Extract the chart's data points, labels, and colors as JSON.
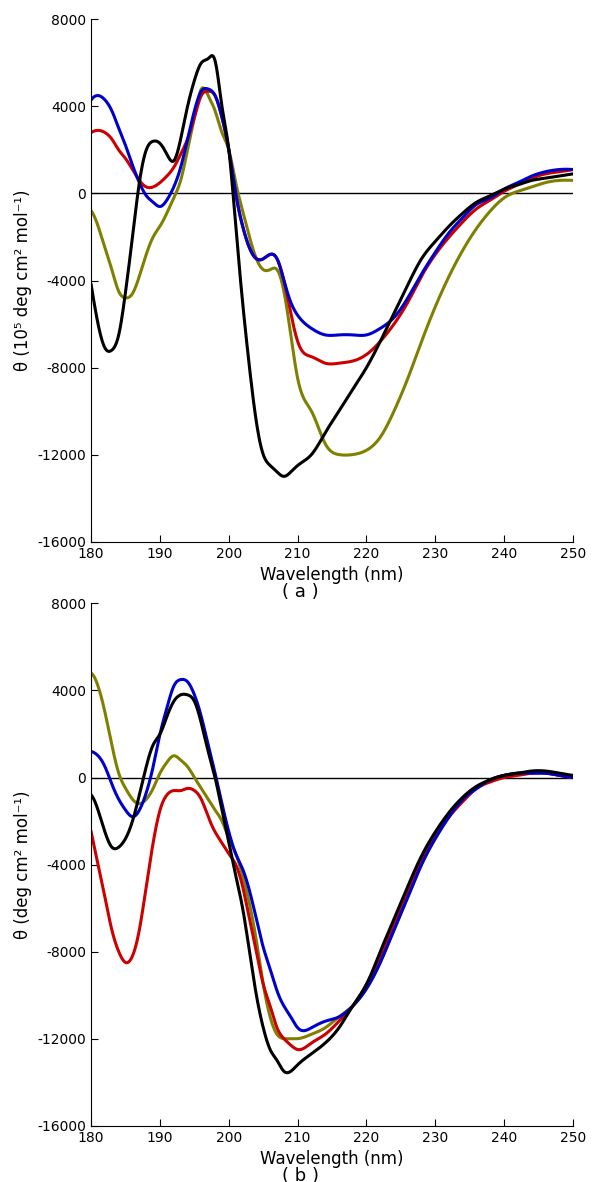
{
  "title_a": "( a )",
  "title_b": "( b )",
  "xlabel": "Wavelength (nm)",
  "ylabel_a": "θ (10⁵ deg cm² mol⁻¹)",
  "ylabel_b": "θ (deg cm² mol⁻¹)",
  "xlim": [
    180,
    250
  ],
  "ylim": [
    -16000,
    8000
  ],
  "xticks": [
    180,
    190,
    200,
    210,
    220,
    230,
    240,
    250
  ],
  "yticks": [
    -16000,
    -12000,
    -8000,
    -4000,
    0,
    4000,
    8000
  ],
  "colors": {
    "black": "#000000",
    "red": "#cc0000",
    "blue": "#0000cc",
    "olive": "#808000"
  },
  "linewidth": 2.2,
  "figsize": [
    6.0,
    11.82
  ],
  "dpi": 100,
  "panel_a": {
    "black_x": [
      180,
      181,
      182,
      183,
      184,
      185,
      186,
      187,
      188,
      189,
      190,
      191,
      192,
      193,
      194,
      195,
      196,
      197,
      198,
      199,
      200,
      201,
      202,
      203,
      204,
      205,
      206,
      207,
      208,
      209,
      210,
      212,
      214,
      216,
      218,
      220,
      222,
      224,
      226,
      228,
      230,
      232,
      234,
      236,
      238,
      240,
      242,
      244,
      246,
      248,
      250
    ],
    "black_y": [
      -4200,
      -6000,
      -7100,
      -7200,
      -6500,
      -4500,
      -2000,
      500,
      2000,
      2400,
      2300,
      1800,
      1500,
      2500,
      4000,
      5200,
      6000,
      6200,
      6100,
      4000,
      2000,
      -1500,
      -5000,
      -8000,
      -10500,
      -12000,
      -12500,
      -12800,
      -13000,
      -12800,
      -12500,
      -12000,
      -11000,
      -10000,
      -9000,
      -8000,
      -6800,
      -5500,
      -4200,
      -3000,
      -2200,
      -1500,
      -900,
      -400,
      -100,
      200,
      400,
      600,
      700,
      800,
      900
    ],
    "red_x": [
      180,
      181,
      182,
      183,
      184,
      185,
      186,
      187,
      188,
      189,
      190,
      191,
      192,
      193,
      194,
      195,
      196,
      197,
      198,
      199,
      200,
      201,
      202,
      203,
      204,
      205,
      206,
      207,
      208,
      209,
      210,
      212,
      214,
      216,
      218,
      220,
      222,
      224,
      226,
      228,
      230,
      232,
      234,
      236,
      238,
      240,
      242,
      244,
      246,
      248,
      250
    ],
    "red_y": [
      2800,
      2900,
      2800,
      2500,
      2000,
      1600,
      1100,
      600,
      300,
      300,
      500,
      800,
      1200,
      1800,
      2500,
      3500,
      4500,
      4700,
      4500,
      3500,
      2000,
      0,
      -1500,
      -2500,
      -3000,
      -3000,
      -2800,
      -3000,
      -4000,
      -5500,
      -6800,
      -7500,
      -7800,
      -7800,
      -7700,
      -7400,
      -6800,
      -6000,
      -5000,
      -3800,
      -2800,
      -2000,
      -1300,
      -700,
      -300,
      100,
      400,
      700,
      900,
      1000,
      1100
    ],
    "blue_x": [
      180,
      181,
      182,
      183,
      184,
      185,
      186,
      187,
      188,
      189,
      190,
      191,
      192,
      193,
      194,
      195,
      196,
      197,
      198,
      199,
      200,
      201,
      202,
      203,
      204,
      205,
      206,
      207,
      208,
      209,
      210,
      212,
      214,
      216,
      218,
      220,
      222,
      224,
      226,
      228,
      230,
      232,
      234,
      236,
      238,
      240,
      242,
      244,
      246,
      248,
      250
    ],
    "blue_y": [
      4300,
      4500,
      4300,
      3800,
      3000,
      2200,
      1300,
      500,
      -100,
      -400,
      -600,
      -300,
      300,
      1200,
      2500,
      3800,
      4700,
      4800,
      4500,
      3500,
      2000,
      0,
      -1500,
      -2500,
      -3000,
      -3000,
      -2800,
      -3000,
      -4000,
      -5000,
      -5600,
      -6200,
      -6500,
      -6500,
      -6500,
      -6500,
      -6200,
      -5700,
      -4800,
      -3700,
      -2700,
      -1800,
      -1100,
      -500,
      -200,
      200,
      500,
      800,
      1000,
      1100,
      1100
    ],
    "olive_x": [
      180,
      181,
      182,
      183,
      184,
      185,
      186,
      187,
      188,
      189,
      190,
      191,
      192,
      193,
      194,
      195,
      196,
      197,
      198,
      199,
      200,
      201,
      202,
      203,
      204,
      205,
      206,
      207,
      208,
      209,
      210,
      212,
      214,
      216,
      218,
      220,
      222,
      224,
      226,
      228,
      230,
      232,
      234,
      236,
      238,
      240,
      242,
      244,
      246,
      248,
      250
    ],
    "olive_y": [
      -800,
      -1500,
      -2500,
      -3500,
      -4500,
      -4800,
      -4600,
      -3800,
      -2800,
      -2000,
      -1500,
      -900,
      -200,
      600,
      2000,
      3500,
      4800,
      4500,
      3800,
      2800,
      2000,
      500,
      -800,
      -2000,
      -3000,
      -3500,
      -3500,
      -3500,
      -4500,
      -6500,
      -8500,
      -10000,
      -11500,
      -12000,
      -12000,
      -11800,
      -11200,
      -10000,
      -8500,
      -6800,
      -5200,
      -3800,
      -2600,
      -1600,
      -800,
      -200,
      100,
      300,
      500,
      600,
      600
    ]
  },
  "panel_b": {
    "black_x": [
      180,
      181,
      182,
      183,
      184,
      185,
      186,
      187,
      188,
      189,
      190,
      191,
      192,
      193,
      194,
      195,
      196,
      197,
      198,
      199,
      200,
      201,
      202,
      203,
      204,
      205,
      206,
      207,
      208,
      209,
      210,
      212,
      214,
      216,
      218,
      220,
      222,
      224,
      226,
      228,
      230,
      232,
      234,
      236,
      238,
      240,
      242,
      244,
      246,
      248,
      250
    ],
    "black_y": [
      -800,
      -1500,
      -2500,
      -3200,
      -3200,
      -2800,
      -2000,
      -800,
      500,
      1500,
      2000,
      2800,
      3500,
      3800,
      3800,
      3500,
      2500,
      1200,
      0,
      -1500,
      -3000,
      -4500,
      -6000,
      -8000,
      -10000,
      -11500,
      -12500,
      -13000,
      -13500,
      -13500,
      -13200,
      -12700,
      -12200,
      -11500,
      -10500,
      -9500,
      -8000,
      -6500,
      -5000,
      -3600,
      -2500,
      -1600,
      -900,
      -400,
      -100,
      100,
      200,
      300,
      300,
      200,
      100
    ],
    "red_x": [
      180,
      181,
      182,
      183,
      184,
      185,
      186,
      187,
      188,
      189,
      190,
      191,
      192,
      193,
      194,
      195,
      196,
      197,
      198,
      199,
      200,
      201,
      202,
      203,
      204,
      205,
      206,
      207,
      208,
      209,
      210,
      212,
      214,
      216,
      218,
      220,
      222,
      224,
      226,
      228,
      230,
      232,
      234,
      236,
      238,
      240,
      242,
      244,
      246,
      248,
      250
    ],
    "red_y": [
      -2500,
      -4000,
      -5500,
      -7000,
      -8000,
      -8500,
      -8200,
      -7000,
      -5000,
      -3000,
      -1500,
      -800,
      -600,
      -600,
      -500,
      -600,
      -1000,
      -1800,
      -2500,
      -3000,
      -3500,
      -4000,
      -5000,
      -6500,
      -8000,
      -9500,
      -10500,
      -11500,
      -12000,
      -12300,
      -12500,
      -12200,
      -11800,
      -11200,
      -10500,
      -9500,
      -8200,
      -6700,
      -5200,
      -3800,
      -2700,
      -1800,
      -1100,
      -500,
      -200,
      0,
      100,
      200,
      200,
      100,
      0
    ],
    "blue_x": [
      180,
      181,
      182,
      183,
      184,
      185,
      186,
      187,
      188,
      189,
      190,
      191,
      192,
      193,
      194,
      195,
      196,
      197,
      198,
      199,
      200,
      201,
      202,
      203,
      204,
      205,
      206,
      207,
      208,
      209,
      210,
      212,
      214,
      216,
      218,
      220,
      222,
      224,
      226,
      228,
      230,
      232,
      234,
      236,
      238,
      240,
      242,
      244,
      246,
      248,
      250
    ],
    "blue_y": [
      1200,
      1000,
      500,
      -300,
      -1000,
      -1500,
      -1800,
      -1500,
      -700,
      500,
      2000,
      3200,
      4200,
      4500,
      4400,
      3800,
      2800,
      1500,
      200,
      -1200,
      -2500,
      -3500,
      -4200,
      -5200,
      -6500,
      -7800,
      -8800,
      -9800,
      -10500,
      -11000,
      -11500,
      -11500,
      -11200,
      -11000,
      -10500,
      -9700,
      -8500,
      -7000,
      -5500,
      -4000,
      -2800,
      -1800,
      -1000,
      -500,
      -100,
      100,
      200,
      200,
      200,
      100,
      0
    ],
    "olive_x": [
      180,
      181,
      182,
      183,
      184,
      185,
      186,
      187,
      188,
      189,
      190,
      191,
      192,
      193,
      194,
      195,
      196,
      197,
      198,
      199,
      200,
      201,
      202,
      203,
      204,
      205,
      206,
      207,
      208,
      209,
      210,
      212,
      214,
      216,
      218,
      220,
      222,
      224,
      226,
      228,
      230,
      232,
      234,
      236,
      238,
      240,
      242,
      244,
      246,
      248,
      250
    ],
    "olive_y": [
      4800,
      4200,
      3000,
      1500,
      200,
      -500,
      -1000,
      -1200,
      -1000,
      -500,
      200,
      700,
      1000,
      800,
      500,
      0,
      -500,
      -1000,
      -1500,
      -2000,
      -2800,
      -3500,
      -4500,
      -5800,
      -7500,
      -9500,
      -11000,
      -11800,
      -12000,
      -12000,
      -12000,
      -11800,
      -11500,
      -11000,
      -10500,
      -9700,
      -8500,
      -7000,
      -5500,
      -4000,
      -2800,
      -1800,
      -1000,
      -500,
      -100,
      100,
      200,
      200,
      200,
      100,
      0
    ]
  }
}
